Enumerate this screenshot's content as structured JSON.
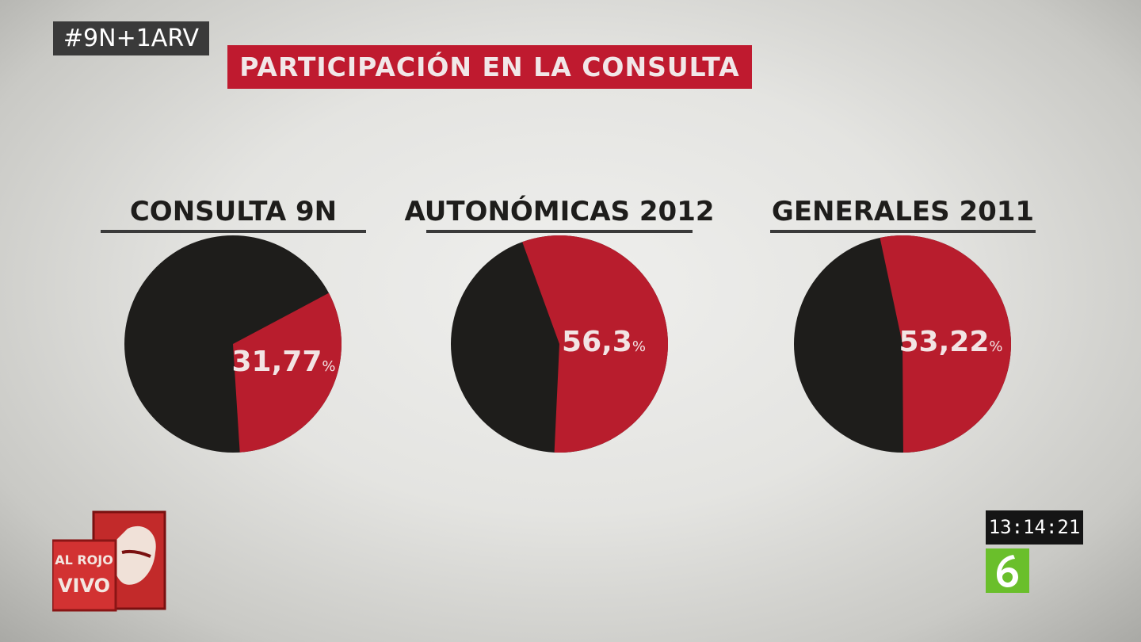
{
  "hashtag": "#9N+1ARV",
  "title": "PARTICIPACIÓN EN LA CONSULTA",
  "colors": {
    "participation": "#b81d2d",
    "rest": "#1e1d1b",
    "title_bg": "#bf1a2f",
    "underline": "#3a3a3a"
  },
  "chart_data": [
    {
      "type": "pie",
      "title": "CONSULTA 9N",
      "value": 31.77,
      "label": "31,77",
      "unit": "%"
    },
    {
      "type": "pie",
      "title": "AUTONÓMICAS 2012",
      "value": 56.3,
      "label": "56,3",
      "unit": "%"
    },
    {
      "type": "pie",
      "title": "GENERALES 2011",
      "value": 53.22,
      "label": "53,22",
      "unit": "%"
    }
  ],
  "clock": "13:14:21",
  "channel_logo_icon": "lasexta-6-icon",
  "show_logo": {
    "icon": "al-rojo-vivo-logo-icon",
    "line1": "AL ROJO",
    "line2": "VIVO"
  }
}
